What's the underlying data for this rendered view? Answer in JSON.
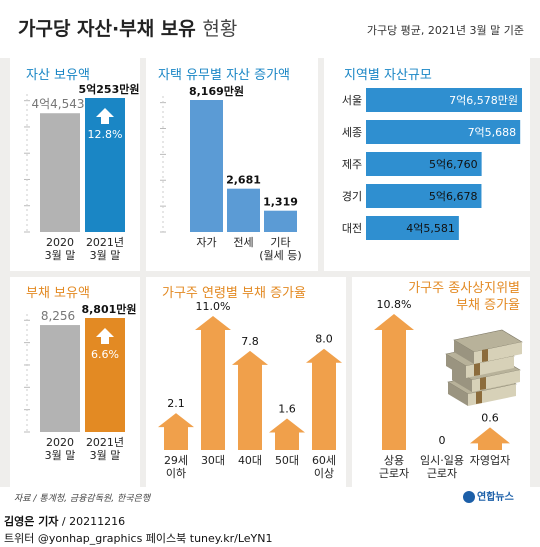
{
  "header": {
    "title": "가구당 자산·부채 보유",
    "title_sub": "현황",
    "basis": "가구당 평균, 2021년 3월 말 기준"
  },
  "chart_data": [
    {
      "type": "bar",
      "title": "자산 보유액",
      "unit": "만원",
      "categories": [
        "2020\n3월 말",
        "2021년\n3월 말"
      ],
      "values": [
        44543,
        50253
      ],
      "labels": [
        "4억4,543",
        "5억253만원"
      ],
      "change_label": "12.8%",
      "colors": [
        "#b3b3b3",
        "#1a86c5"
      ],
      "ylim": [
        0,
        50253
      ]
    },
    {
      "type": "bar",
      "title": "자택 유무별 자산 증가액",
      "unit": "만원",
      "categories": [
        "자가",
        "전세",
        "기타\n(월세 등)"
      ],
      "values": [
        8169,
        2681,
        1319
      ],
      "labels": [
        "8,169만원",
        "2,681",
        "1,319"
      ],
      "color": "#5b9bd5",
      "ylim": [
        0,
        8169
      ]
    },
    {
      "type": "bar",
      "orientation": "horizontal",
      "title": "지역별 자산규모",
      "unit": "만원",
      "categories": [
        "서울",
        "세종",
        "제주",
        "경기",
        "대전"
      ],
      "values": [
        76578,
        75688,
        56760,
        56678,
        45581
      ],
      "labels": [
        "7억6,578만원",
        "7억5,688",
        "5억6,760",
        "5억6,678",
        "4억5,581"
      ],
      "color": "#2f8fd0"
    },
    {
      "type": "bar",
      "title": "부채 보유액",
      "unit": "만원",
      "categories": [
        "2020\n3월 말",
        "2021년\n3월 말"
      ],
      "values": [
        8256,
        8801
      ],
      "labels": [
        "8,256",
        "8,801만원"
      ],
      "change_label": "6.6%",
      "colors": [
        "#b3b3b3",
        "#e38a23"
      ],
      "ylim": [
        0,
        8801
      ]
    },
    {
      "type": "bar",
      "style": "arrow",
      "title": "가구주 연령별 부채 증가율",
      "unit": "%",
      "categories": [
        "29세\n이하",
        "30대",
        "40대",
        "50대",
        "60세\n이상"
      ],
      "values": [
        2.1,
        11.0,
        7.8,
        1.6,
        8.0
      ],
      "labels": [
        "2.1",
        "11.0%",
        "7.8",
        "1.6",
        "8.0"
      ],
      "color": "#f0a04b",
      "ylim": [
        0,
        11.0
      ]
    },
    {
      "type": "bar",
      "style": "arrow",
      "title": "가구주 종사상지위별\n부채 증가율",
      "unit": "%",
      "categories": [
        "상용\n근로자",
        "임시·일용\n근로자",
        "자영업자"
      ],
      "values": [
        10.8,
        0,
        0.6
      ],
      "labels": [
        "10.8%",
        "0",
        "0.6"
      ],
      "color": "#f0a04b",
      "ylim": [
        0,
        10.8
      ]
    }
  ],
  "footer": {
    "source": "자료 / 통계청, 금융감독원, 한국은행",
    "logo": "연합뉴스",
    "reporter": "김영은 기자",
    "date": " / 20211216",
    "social": "트위터 @yonhap_graphics  페이스북 tuney.kr/LeYN1"
  }
}
